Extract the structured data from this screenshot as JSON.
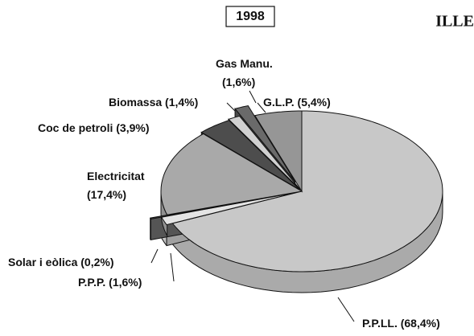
{
  "chart_data": {
    "type": "pie3d",
    "title": "1998",
    "corner_text": "ILLE",
    "categories": [
      "P.P.LL.",
      "P.P.P.",
      "Solar i eòlica",
      "Electricitat",
      "Coc de petroli",
      "Biomassa",
      "Gas Manu.",
      "G.L.P."
    ],
    "values": [
      68.4,
      1.6,
      0.2,
      17.4,
      3.9,
      1.4,
      1.6,
      5.4
    ],
    "value_labels": [
      "(68,4%)",
      "(1,6%)",
      "(0,2%)",
      "(17,4%)",
      "(3,9%)",
      "(1,4%)",
      "(1,6%)",
      "(5,4%)"
    ],
    "colors": [
      "#c8c8c8",
      "#e4e4e4",
      "#7a7a7a",
      "#a9a9a9",
      "#4d4d4d",
      "#d0d0d0",
      "#6a6a6a",
      "#969696"
    ]
  }
}
